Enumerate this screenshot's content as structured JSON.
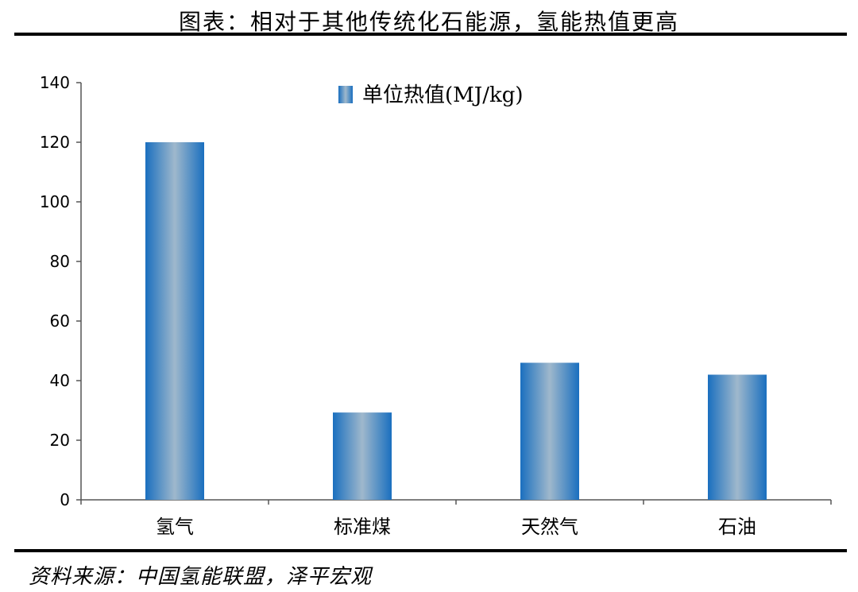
{
  "header": {
    "title": "图表：相对于其他传统化石能源，氢能热值更高"
  },
  "footer": {
    "source": "资料来源：中国氢能联盟，泽平宏观"
  },
  "chart_data": {
    "type": "bar",
    "categories": [
      "氢气",
      "标准煤",
      "天然气",
      "石油"
    ],
    "series": [
      {
        "name": "单位热值(MJ/kg)",
        "values": [
          120,
          29.3,
          46,
          42
        ]
      }
    ],
    "ylim": [
      0,
      140
    ],
    "yticks": [
      0,
      20,
      40,
      60,
      80,
      100,
      120,
      140
    ],
    "legend_position": "top-center",
    "grid": false,
    "colors": {
      "bar_edge": "#1a6fbf",
      "bar_center": "#9fb8cc",
      "axis": "#555555"
    }
  }
}
